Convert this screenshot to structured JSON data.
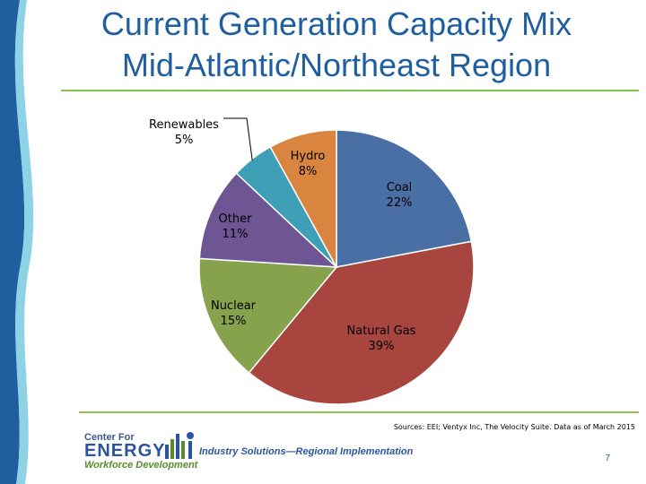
{
  "slide": {
    "title_line1": "Current Generation Capacity Mix",
    "title_line2": "Mid-Atlantic/Northeast Region",
    "sources": "Sources: EEI; Ventyx Inc, The Velocity Suite. Data as of March 2015",
    "page_number": "7"
  },
  "logo": {
    "line1": "Center For",
    "line2": "ENERGY",
    "line3": "Workforce Development",
    "tagline": "Industry Solutions—Regional Implementation"
  },
  "colors": {
    "title": "#1f5fa0",
    "rule": "#8ac24a",
    "band_dark": "#1f5fa0",
    "band_light": "#8ed2e6"
  },
  "chart_data": {
    "type": "pie",
    "title": "",
    "start_angle_deg": 0,
    "direction": "clockwise",
    "slices": [
      {
        "name": "Coal",
        "value": 22,
        "label_line1": "Coal",
        "label_line2": "22%",
        "color": "#4a6fa5"
      },
      {
        "name": "Natural Gas",
        "value": 39,
        "label_line1": "Natural Gas",
        "label_line2": "39%",
        "color": "#a8453f"
      },
      {
        "name": "Nuclear",
        "value": 15,
        "label_line1": "Nuclear",
        "label_line2": "15%",
        "color": "#87a24d"
      },
      {
        "name": "Other",
        "value": 11,
        "label_line1": "Other",
        "label_line2": "11%",
        "color": "#6e5593"
      },
      {
        "name": "Renewables",
        "value": 5,
        "label_line1": "Renewables",
        "label_line2": "5%",
        "color": "#3f9fb6"
      },
      {
        "name": "Hydro",
        "value": 8,
        "label_line1": "Hydro",
        "label_line2": "8%",
        "color": "#d9843f"
      }
    ]
  }
}
